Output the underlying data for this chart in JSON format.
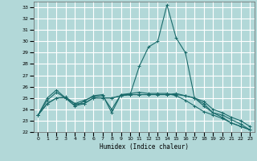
{
  "title": "",
  "xlabel": "Humidex (Indice chaleur)",
  "ylabel": "",
  "bg_color": "#b2d8d8",
  "grid_color": "#ffffff",
  "line_color": "#1a6b6b",
  "xlim": [
    -0.5,
    23.5
  ],
  "ylim": [
    22,
    33.5
  ],
  "yticks": [
    22,
    23,
    24,
    25,
    26,
    27,
    28,
    29,
    30,
    31,
    32,
    33
  ],
  "xticks": [
    0,
    1,
    2,
    3,
    4,
    5,
    6,
    7,
    8,
    9,
    10,
    11,
    12,
    13,
    14,
    15,
    16,
    17,
    18,
    19,
    20,
    21,
    22,
    23
  ],
  "series1": {
    "x": [
      0,
      1,
      2,
      3,
      4,
      5,
      6,
      7,
      8,
      9,
      10,
      11,
      12,
      13,
      14,
      15,
      16,
      17,
      18,
      19,
      20,
      21,
      22,
      23
    ],
    "y": [
      23.5,
      25.0,
      25.7,
      25.0,
      24.3,
      24.7,
      25.2,
      25.3,
      23.7,
      25.3,
      25.3,
      27.8,
      29.5,
      30.0,
      33.2,
      30.3,
      29.0,
      25.0,
      24.3,
      23.7,
      23.5,
      23.1,
      22.7,
      22.2
    ]
  },
  "series2": {
    "x": [
      0,
      1,
      2,
      3,
      4,
      5,
      6,
      7,
      8,
      9,
      10,
      11,
      12,
      13,
      14,
      15,
      16,
      17,
      18,
      19,
      20,
      21,
      22,
      23
    ],
    "y": [
      23.5,
      24.8,
      25.5,
      25.0,
      24.3,
      24.5,
      25.0,
      25.0,
      25.0,
      25.2,
      25.3,
      25.3,
      25.3,
      25.3,
      25.3,
      25.3,
      25.2,
      25.0,
      24.7,
      24.0,
      23.7,
      23.3,
      23.0,
      22.5
    ]
  },
  "series3": {
    "x": [
      0,
      1,
      2,
      3,
      4,
      5,
      6,
      7,
      8,
      9,
      10,
      11,
      12,
      13,
      14,
      15,
      16,
      17,
      18,
      19,
      20,
      21,
      22,
      23
    ],
    "y": [
      23.5,
      24.5,
      25.0,
      25.0,
      24.5,
      24.5,
      25.0,
      25.0,
      25.0,
      25.2,
      25.3,
      25.3,
      25.3,
      25.3,
      25.3,
      25.4,
      25.2,
      25.0,
      24.5,
      23.7,
      23.3,
      22.8,
      22.5,
      22.2
    ]
  },
  "series4": {
    "x": [
      0,
      1,
      2,
      3,
      4,
      5,
      6,
      7,
      8,
      9,
      10,
      11,
      12,
      13,
      14,
      15,
      16,
      17,
      18,
      19,
      20,
      21,
      22,
      23
    ],
    "y": [
      23.5,
      24.5,
      25.0,
      25.1,
      24.5,
      24.8,
      25.1,
      25.2,
      24.0,
      25.3,
      25.4,
      25.5,
      25.4,
      25.4,
      25.4,
      25.2,
      24.8,
      24.3,
      23.8,
      23.5,
      23.2,
      22.8,
      22.5,
      22.2
    ]
  }
}
